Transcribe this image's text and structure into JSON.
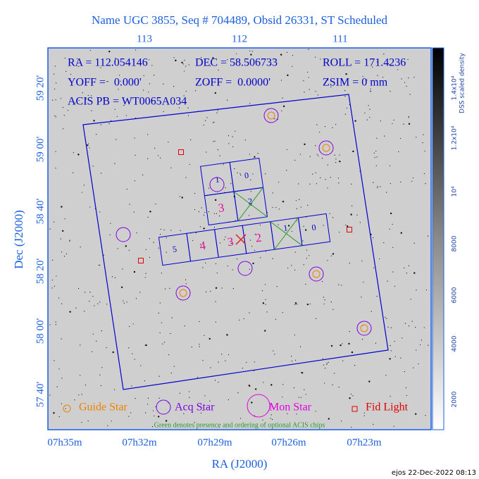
{
  "title": "Name UGC 3855, Seq # 704489, Obsid 26331, ST Scheduled",
  "top_axis": {
    "labels": [
      "113",
      "112",
      "111"
    ]
  },
  "info": {
    "ra": "RA = 112.054146",
    "dec": "DEC = 58.506733",
    "roll": "ROLL = 171.4236",
    "yoff": "YOFF =   0.000'",
    "zoff": "ZOFF =  0.0000'",
    "zsim": "ZSIM = 0 mm",
    "acis_pb": "ACIS PB = WT0065A034"
  },
  "y_axis": {
    "title": "Dec (J2000)",
    "labels": [
      "59 20'",
      "59 00'",
      "58 40'",
      "58 20'",
      "58 00'",
      "57 40'"
    ]
  },
  "x_axis": {
    "title": "RA (J2000)",
    "labels": [
      "07h35m",
      "07h32m",
      "07h29m",
      "07h26m",
      "07h23m"
    ]
  },
  "colorbar": {
    "title": "DSS scaled density",
    "labels": [
      "2000",
      "4000",
      "6000",
      "8000",
      "10⁴",
      "1.2x10⁴",
      "1.4x10⁴"
    ]
  },
  "acis_i": {
    "chips": [
      "1",
      "0",
      "3",
      "2"
    ]
  },
  "acis_s": {
    "chips": [
      "5",
      "4",
      "3",
      "2",
      "1",
      "0"
    ]
  },
  "legend": [
    "Guide Star",
    "Acq Star",
    "Mon Star",
    "Fid Light"
  ],
  "note": "Green denotes presence and ordering of optional ACIS chips",
  "footer": "ejos 22-Dec-2022 08:13"
}
